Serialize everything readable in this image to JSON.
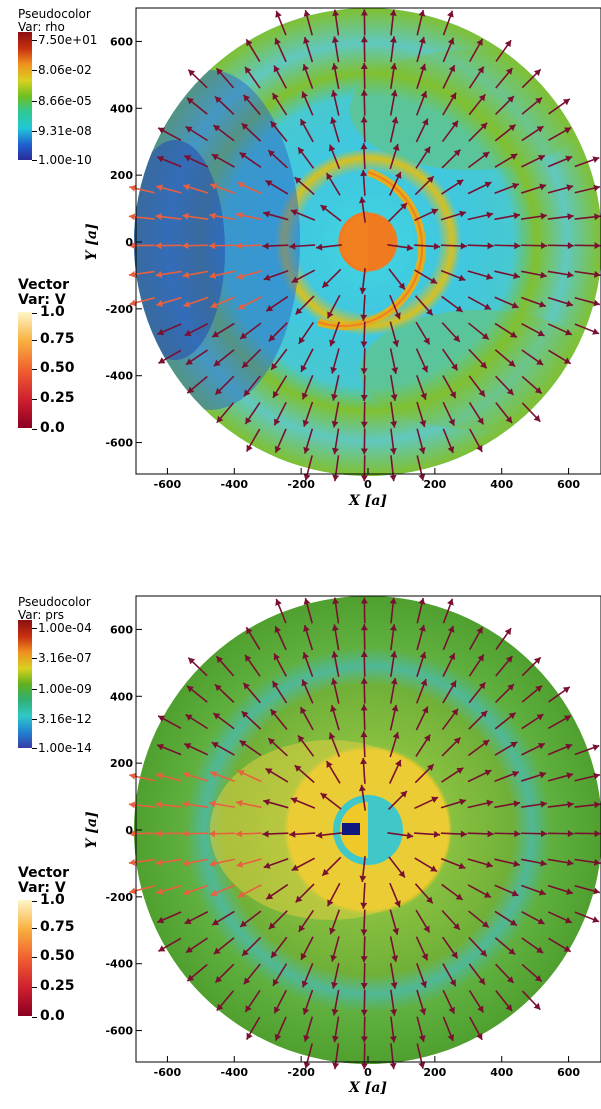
{
  "panels": [
    {
      "pseudocolor": {
        "title": "Pseudocolor",
        "var_label": "Var: rho",
        "ticks": [
          "7.50e+01",
          "8.06e-02",
          "8.66e-05",
          "9.31e-08",
          "1.00e-10"
        ]
      },
      "vector": {
        "title": "Vector",
        "var_label": "Var: V",
        "ticks": [
          "1.0",
          "0.75",
          "0.50",
          "0.25",
          "0.0"
        ]
      },
      "axes": {
        "xlabel": "X [a]",
        "ylabel": "Y [a]",
        "xticks": [
          "-600",
          "-400",
          "-200",
          "0",
          "200",
          "400",
          "600"
        ],
        "yticks": [
          "600",
          "400",
          "200",
          "0",
          "-200",
          "-400",
          "-600"
        ]
      }
    },
    {
      "pseudocolor": {
        "title": "Pseudocolor",
        "var_label": "Var: prs",
        "ticks": [
          "1.00e-04",
          "3.16e-07",
          "1.00e-09",
          "3.16e-12",
          "1.00e-14"
        ]
      },
      "vector": {
        "title": "Vector",
        "var_label": "Var: V",
        "ticks": [
          "1.0",
          "0.75",
          "0.50",
          "0.25",
          "0.0"
        ]
      },
      "axes": {
        "xlabel": "X [a]",
        "ylabel": "Y [a]",
        "xticks": [
          "-600",
          "-400",
          "-200",
          "0",
          "200",
          "400",
          "600"
        ],
        "yticks": [
          "600",
          "400",
          "200",
          "0",
          "-200",
          "-400",
          "-600"
        ]
      }
    }
  ],
  "chart_data": [
    {
      "type": "heatmap",
      "variable": "rho",
      "colorbar_scale": "log",
      "colorbar_range": [
        1e-10,
        75.0
      ],
      "xlim": [
        -650,
        650
      ],
      "ylim": [
        -650,
        650
      ],
      "xticks": [
        -600,
        -400,
        -200,
        0,
        200,
        400,
        600
      ],
      "yticks": [
        -600,
        -400,
        -200,
        0,
        200,
        400,
        600
      ],
      "domain_radius": 700,
      "overlay": "velocity vectors",
      "vector_range": [
        0.0,
        1.0
      ]
    },
    {
      "type": "heatmap",
      "variable": "prs",
      "colorbar_scale": "log",
      "colorbar_range": [
        1e-14,
        0.0001
      ],
      "xlim": [
        -650,
        650
      ],
      "ylim": [
        -650,
        650
      ],
      "xticks": [
        -600,
        -400,
        -200,
        0,
        200,
        400,
        600
      ],
      "yticks": [
        -600,
        -400,
        -200,
        0,
        200,
        400,
        600
      ],
      "domain_radius": 700,
      "overlay": "velocity vectors",
      "vector_range": [
        0.0,
        1.0
      ]
    }
  ],
  "colors": {
    "vector_arrow": "#7a1030",
    "vector_arrow_fast": "#e86040",
    "background": "#ffffff"
  }
}
